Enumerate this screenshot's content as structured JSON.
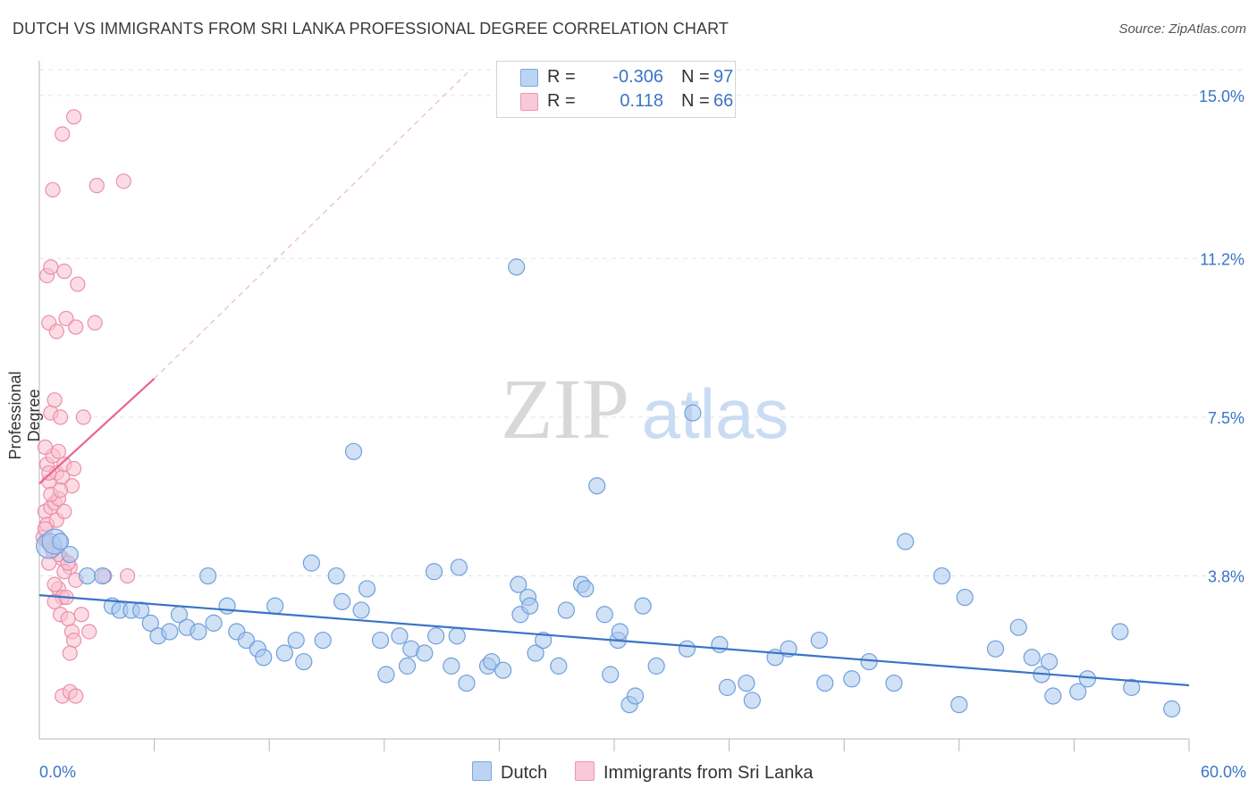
{
  "title": "DUTCH VS IMMIGRANTS FROM SRI LANKA PROFESSIONAL DEGREE CORRELATION CHART",
  "source": "Source: ZipAtlas.com",
  "watermark": {
    "zip": "ZIP",
    "atlas": "atlas"
  },
  "legend": {
    "r_label": "R =",
    "n_label": "N =",
    "dutch": {
      "r": "-0.306",
      "n": "97"
    },
    "srilanka": {
      "r": "0.118",
      "n": "66"
    }
  },
  "colors": {
    "dutch_fill": "#a9c8ef",
    "dutch_stroke": "#6f9fdc",
    "dutch_line": "#3a74c6",
    "srilanka_fill": "#f7bfd0",
    "srilanka_stroke": "#ec8eab",
    "srilanka_line": "#e86690",
    "tick_label": "#3a74c6",
    "grid": "#e3e3e3"
  },
  "chart_data": {
    "type": "scatter",
    "title": "DUTCH VS IMMIGRANTS FROM SRI LANKA PROFESSIONAL DEGREE CORRELATION CHART",
    "xlabel": "",
    "ylabel": "Professional Degree",
    "xlim": [
      0,
      60
    ],
    "ylim": [
      0,
      15.6
    ],
    "x_tick_labels": [
      "0.0%",
      "60.0%"
    ],
    "y_ticks": [
      3.8,
      7.5,
      11.2,
      15.0
    ],
    "y_tick_labels": [
      "3.8%",
      "7.5%",
      "11.2%",
      "15.0%"
    ],
    "grid": true,
    "legend_position": "top-center",
    "series": [
      {
        "name": "Dutch",
        "r": -0.306,
        "n": 97,
        "trend": {
          "x": [
            0,
            60
          ],
          "y": [
            3.35,
            1.25
          ]
        },
        "points": [
          [
            0.5,
            4.5
          ],
          [
            0.8,
            4.6
          ],
          [
            1.1,
            4.6
          ],
          [
            1.6,
            4.3
          ],
          [
            2.5,
            3.8
          ],
          [
            3.3,
            3.8
          ],
          [
            3.8,
            3.1
          ],
          [
            4.2,
            3.0
          ],
          [
            4.8,
            3.0
          ],
          [
            5.3,
            3.0
          ],
          [
            5.8,
            2.7
          ],
          [
            6.2,
            2.4
          ],
          [
            6.8,
            2.5
          ],
          [
            7.3,
            2.9
          ],
          [
            7.7,
            2.6
          ],
          [
            8.3,
            2.5
          ],
          [
            8.8,
            3.8
          ],
          [
            9.1,
            2.7
          ],
          [
            9.8,
            3.1
          ],
          [
            10.3,
            2.5
          ],
          [
            10.8,
            2.3
          ],
          [
            11.4,
            2.1
          ],
          [
            11.7,
            1.9
          ],
          [
            12.3,
            3.1
          ],
          [
            12.8,
            2.0
          ],
          [
            13.4,
            2.3
          ],
          [
            13.8,
            1.8
          ],
          [
            14.2,
            4.1
          ],
          [
            14.8,
            2.3
          ],
          [
            15.5,
            3.8
          ],
          [
            15.8,
            3.2
          ],
          [
            16.4,
            6.7
          ],
          [
            16.8,
            3.0
          ],
          [
            17.1,
            3.5
          ],
          [
            17.8,
            2.3
          ],
          [
            18.1,
            1.5
          ],
          [
            18.8,
            2.4
          ],
          [
            19.2,
            1.7
          ],
          [
            19.4,
            2.1
          ],
          [
            20.1,
            2.0
          ],
          [
            20.6,
            3.9
          ],
          [
            20.7,
            2.4
          ],
          [
            21.5,
            1.7
          ],
          [
            21.8,
            2.4
          ],
          [
            21.9,
            4.0
          ],
          [
            22.3,
            1.3
          ],
          [
            23.4,
            1.7
          ],
          [
            23.6,
            1.8
          ],
          [
            24.2,
            1.6
          ],
          [
            24.9,
            11.0
          ],
          [
            25.0,
            3.6
          ],
          [
            25.1,
            2.9
          ],
          [
            25.5,
            3.3
          ],
          [
            25.6,
            3.1
          ],
          [
            25.9,
            2.0
          ],
          [
            26.3,
            2.3
          ],
          [
            27.1,
            1.7
          ],
          [
            27.5,
            3.0
          ],
          [
            28.3,
            3.6
          ],
          [
            28.5,
            3.5
          ],
          [
            29.1,
            5.9
          ],
          [
            29.5,
            2.9
          ],
          [
            29.8,
            1.5
          ],
          [
            30.2,
            2.3
          ],
          [
            30.3,
            2.5
          ],
          [
            30.8,
            0.8
          ],
          [
            31.1,
            1.0
          ],
          [
            31.5,
            3.1
          ],
          [
            32.2,
            1.7
          ],
          [
            33.8,
            2.1
          ],
          [
            34.1,
            7.6
          ],
          [
            35.5,
            2.2
          ],
          [
            35.9,
            1.2
          ],
          [
            36.9,
            1.3
          ],
          [
            37.2,
            0.9
          ],
          [
            38.4,
            1.9
          ],
          [
            39.1,
            2.1
          ],
          [
            40.7,
            2.3
          ],
          [
            41.0,
            1.3
          ],
          [
            42.4,
            1.4
          ],
          [
            43.3,
            1.8
          ],
          [
            44.6,
            1.3
          ],
          [
            45.2,
            4.6
          ],
          [
            47.1,
            3.8
          ],
          [
            48.0,
            0.8
          ],
          [
            48.3,
            3.3
          ],
          [
            49.9,
            2.1
          ],
          [
            51.1,
            2.6
          ],
          [
            51.8,
            1.9
          ],
          [
            52.3,
            1.5
          ],
          [
            52.7,
            1.8
          ],
          [
            52.9,
            1.0
          ],
          [
            54.2,
            1.1
          ],
          [
            54.7,
            1.4
          ],
          [
            56.4,
            2.5
          ],
          [
            57.0,
            1.2
          ],
          [
            59.1,
            0.7
          ]
        ]
      },
      {
        "name": "Immigrants from Sri Lanka",
        "r": 0.118,
        "n": 66,
        "trend": {
          "x": [
            0,
            6
          ],
          "y": [
            5.95,
            8.4
          ],
          "dash_to": [
            22.5,
            15.6
          ]
        },
        "points": [
          [
            0.2,
            4.7
          ],
          [
            0.3,
            5.3
          ],
          [
            0.4,
            5.0
          ],
          [
            0.6,
            5.4
          ],
          [
            0.8,
            5.5
          ],
          [
            1.0,
            5.6
          ],
          [
            0.5,
            6.0
          ],
          [
            0.9,
            6.2
          ],
          [
            1.2,
            6.1
          ],
          [
            0.4,
            6.4
          ],
          [
            0.7,
            6.6
          ],
          [
            1.3,
            6.4
          ],
          [
            0.3,
            6.8
          ],
          [
            1.0,
            6.7
          ],
          [
            1.8,
            6.3
          ],
          [
            0.6,
            7.6
          ],
          [
            0.8,
            7.9
          ],
          [
            1.1,
            7.5
          ],
          [
            2.3,
            7.5
          ],
          [
            0.5,
            9.7
          ],
          [
            0.9,
            9.5
          ],
          [
            1.4,
            9.8
          ],
          [
            1.9,
            9.6
          ],
          [
            2.0,
            10.6
          ],
          [
            0.4,
            10.8
          ],
          [
            0.6,
            11.0
          ],
          [
            1.3,
            10.9
          ],
          [
            0.7,
            12.8
          ],
          [
            1.2,
            14.1
          ],
          [
            1.8,
            14.5
          ],
          [
            3.0,
            12.9
          ],
          [
            4.4,
            13.0
          ],
          [
            2.9,
            9.7
          ],
          [
            0.5,
            4.1
          ],
          [
            1.2,
            4.2
          ],
          [
            1.6,
            4.0
          ],
          [
            1.3,
            3.9
          ],
          [
            1.0,
            3.5
          ],
          [
            1.2,
            3.3
          ],
          [
            0.8,
            3.2
          ],
          [
            1.4,
            3.3
          ],
          [
            1.1,
            2.9
          ],
          [
            1.5,
            2.8
          ],
          [
            1.7,
            2.5
          ],
          [
            1.8,
            2.3
          ],
          [
            1.6,
            2.0
          ],
          [
            3.4,
            3.8
          ],
          [
            4.6,
            3.8
          ],
          [
            1.2,
            1.0
          ],
          [
            1.6,
            1.1
          ],
          [
            1.9,
            1.0
          ],
          [
            0.9,
            5.1
          ],
          [
            0.6,
            5.7
          ],
          [
            1.3,
            5.3
          ],
          [
            0.5,
            6.2
          ],
          [
            0.7,
            4.4
          ],
          [
            0.4,
            4.6
          ],
          [
            1.0,
            4.3
          ],
          [
            1.5,
            4.1
          ],
          [
            1.9,
            3.7
          ],
          [
            0.8,
            3.6
          ],
          [
            2.6,
            2.5
          ],
          [
            2.2,
            2.9
          ],
          [
            0.3,
            4.9
          ],
          [
            1.7,
            5.9
          ],
          [
            1.1,
            5.8
          ]
        ]
      }
    ]
  },
  "bottom_legend": {
    "dutch": "Dutch",
    "srilanka": "Immigrants from Sri Lanka"
  }
}
